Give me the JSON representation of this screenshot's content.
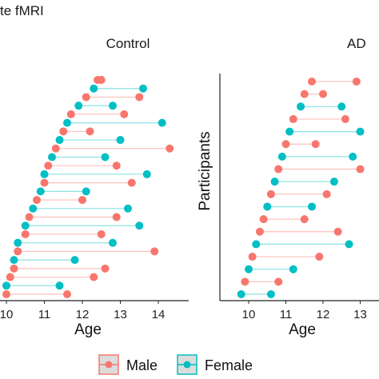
{
  "figure": {
    "title": "te fMRI",
    "legend_position": "bottom",
    "legend": [
      {
        "label": "Male",
        "color": "#F8766D"
      },
      {
        "label": "Female",
        "color": "#00BFC4"
      }
    ]
  },
  "chart_data": [
    {
      "type": "dumbbell",
      "title": "Control",
      "xlabel": "Age",
      "ylabel": "",
      "xlim": [
        9.6,
        14.6
      ],
      "x_ticks": [
        "10",
        "11",
        "12",
        "13",
        "14"
      ],
      "y_ticks": [],
      "grid": false,
      "series": [
        {
          "name": "Male",
          "color": "#F8766D",
          "segments": [
            [
              10.0,
              11.6
            ],
            [
              10.1,
              12.3
            ],
            [
              10.2,
              12.6
            ],
            [
              10.3,
              13.9
            ],
            [
              10.5,
              12.5
            ],
            [
              10.6,
              12.9
            ],
            [
              10.8,
              12.0
            ],
            [
              11.0,
              13.3
            ],
            [
              11.1,
              12.9
            ],
            [
              11.3,
              14.3
            ],
            [
              11.5,
              12.2
            ],
            [
              11.7,
              13.1
            ],
            [
              12.1,
              13.5
            ],
            [
              12.4,
              12.5
            ]
          ]
        },
        {
          "name": "Female",
          "color": "#00BFC4",
          "segments": [
            [
              10.0,
              11.4
            ],
            [
              10.2,
              11.8
            ],
            [
              10.3,
              12.8
            ],
            [
              10.5,
              13.5
            ],
            [
              10.7,
              13.2
            ],
            [
              10.9,
              12.1
            ],
            [
              11.0,
              13.7
            ],
            [
              11.2,
              12.6
            ],
            [
              11.4,
              13.0
            ],
            [
              11.6,
              14.1
            ],
            [
              11.9,
              12.8
            ],
            [
              12.3,
              13.6
            ]
          ]
        }
      ]
    },
    {
      "type": "dumbbell",
      "title": "AD",
      "xlabel": "Age",
      "ylabel": "Participants",
      "xlim": [
        9.6,
        13.6
      ],
      "x_ticks": [
        "10",
        "11",
        "12",
        "13"
      ],
      "y_ticks": [],
      "grid": false,
      "series": [
        {
          "name": "Male",
          "color": "#F8766D",
          "segments": [
            [
              9.9,
              10.8
            ],
            [
              10.1,
              11.9
            ],
            [
              10.3,
              12.4
            ],
            [
              10.4,
              11.5
            ],
            [
              10.6,
              12.1
            ],
            [
              10.8,
              13.0
            ],
            [
              11.0,
              11.8
            ],
            [
              11.2,
              12.6
            ],
            [
              11.5,
              12.0
            ],
            [
              11.7,
              12.9
            ]
          ]
        },
        {
          "name": "Female",
          "color": "#00BFC4",
          "segments": [
            [
              9.8,
              10.6
            ],
            [
              10.0,
              11.2
            ],
            [
              10.2,
              12.7
            ],
            [
              10.5,
              11.7
            ],
            [
              10.7,
              12.3
            ],
            [
              10.9,
              12.8
            ],
            [
              11.1,
              13.0
            ],
            [
              11.4,
              12.5
            ]
          ]
        }
      ]
    }
  ]
}
